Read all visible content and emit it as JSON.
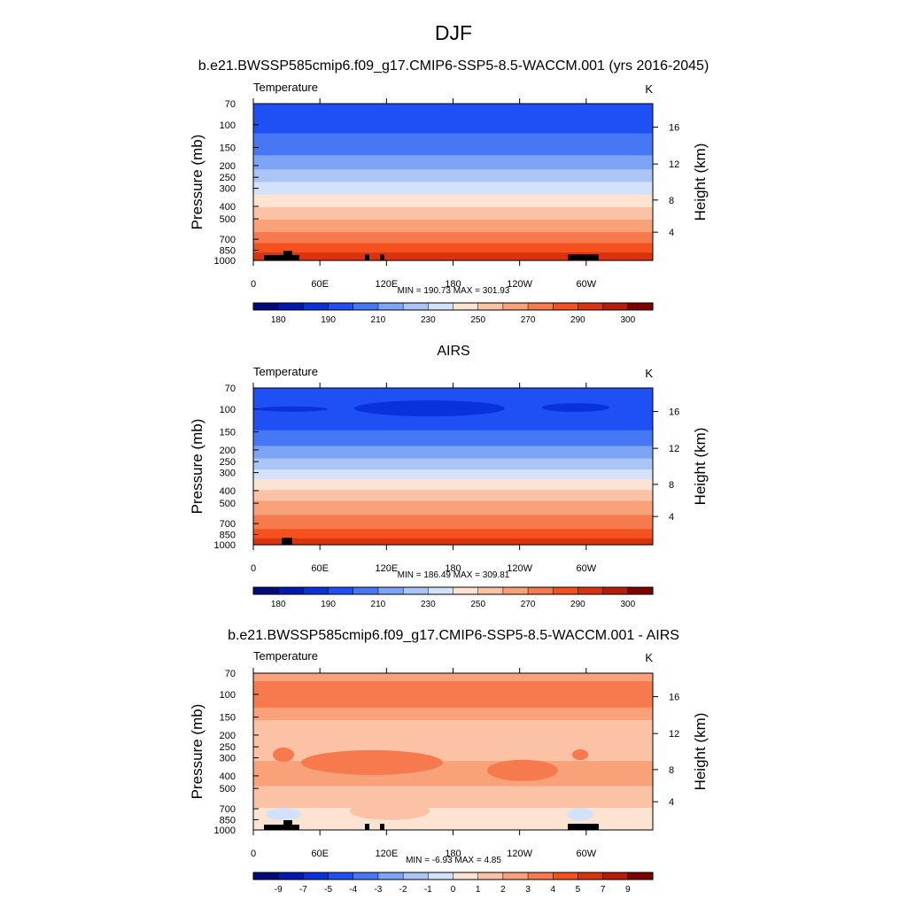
{
  "page": {
    "title": "DJF"
  },
  "chart_data": [
    {
      "type": "heatmap",
      "title": "b.e21.BWSSP585cmip6.f09_g17.CMIP6-SSP5-8.5-WACCM.001 (yrs 2016-2045)",
      "field_label": "Temperature",
      "units": "K",
      "ylabel": "Pressure (mb)",
      "y2label": "Height (km)",
      "yticks": [
        "70",
        "100",
        "150",
        "200",
        "250",
        "300",
        "400",
        "500",
        "700",
        "850",
        "1000"
      ],
      "y2ticks": [
        "16",
        "12",
        "8",
        "4"
      ],
      "xticks": [
        "0",
        "60E",
        "120E",
        "180",
        "120W",
        "60W"
      ],
      "xlim": [
        0,
        360
      ],
      "ylim": [
        1000,
        70
      ],
      "stats": "MIN = 190.73  MAX = 301.93",
      "colorbar_labels": [
        "180",
        "190",
        "210",
        "230",
        "250",
        "270",
        "290",
        "300"
      ]
    },
    {
      "type": "heatmap",
      "title": "AIRS",
      "field_label": "Temperature",
      "units": "K",
      "ylabel": "Pressure (mb)",
      "y2label": "Height (km)",
      "yticks": [
        "70",
        "100",
        "150",
        "200",
        "250",
        "300",
        "400",
        "500",
        "700",
        "850",
        "1000"
      ],
      "y2ticks": [
        "16",
        "12",
        "8",
        "4"
      ],
      "xticks": [
        "0",
        "60E",
        "120E",
        "180",
        "120W",
        "60W"
      ],
      "xlim": [
        0,
        360
      ],
      "ylim": [
        1000,
        70
      ],
      "stats": "MIN = 186.49  MAX = 309.81",
      "colorbar_labels": [
        "180",
        "190",
        "210",
        "230",
        "250",
        "270",
        "290",
        "300"
      ]
    },
    {
      "type": "heatmap",
      "title": "b.e21.BWSSP585cmip6.f09_g17.CMIP6-SSP5-8.5-WACCM.001 - AIRS",
      "field_label": "Temperature",
      "units": "K",
      "ylabel": "Pressure (mb)",
      "y2label": "Height (km)",
      "yticks": [
        "70",
        "100",
        "150",
        "200",
        "250",
        "300",
        "400",
        "500",
        "700",
        "850",
        "1000"
      ],
      "y2ticks": [
        "16",
        "12",
        "8",
        "4"
      ],
      "xticks": [
        "0",
        "60E",
        "120E",
        "180",
        "120W",
        "60W"
      ],
      "xlim": [
        0,
        360
      ],
      "ylim": [
        1000,
        70
      ],
      "stats": "MIN =  -6.93  MAX =   4.85",
      "colorbar_labels": [
        "-9",
        "-7",
        "-5",
        "-4",
        "-3",
        "-2",
        "-1",
        "0",
        "1",
        "2",
        "3",
        "4",
        "5",
        "7",
        "9"
      ]
    }
  ],
  "colors": {
    "colormap": [
      "#000a7f",
      "#0019b4",
      "#0a32dc",
      "#1e50f5",
      "#4678f5",
      "#7ea5f5",
      "#abc5f7",
      "#d2e2fc",
      "#fde4d2",
      "#fcc2a6",
      "#f9a27a",
      "#f67a4d",
      "#f4511e",
      "#db3310",
      "#b81c08",
      "#800000"
    ]
  }
}
